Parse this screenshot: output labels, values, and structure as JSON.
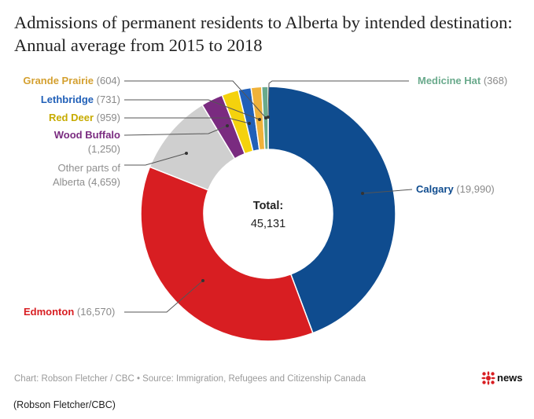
{
  "chart_data": {
    "type": "pie",
    "title": "Admissions of permanent residents to Alberta by intended destination: Annual average from 2015 to 2018",
    "total_label": "Total:",
    "total_value": "45,131",
    "slices": [
      {
        "name": "Calgary",
        "value": 19990,
        "value_label": "(19,990)",
        "color": "#0f4c8f"
      },
      {
        "name": "Edmonton",
        "value": 16570,
        "value_label": "(16,570)",
        "color": "#d81e22"
      },
      {
        "name": "Other parts of Alberta",
        "value": 4659,
        "value_label": "(4,659)",
        "color": "#cfcfcf"
      },
      {
        "name": "Wood Buffalo",
        "value": 1250,
        "value_label": "(1,250)",
        "color": "#7a2b80"
      },
      {
        "name": "Red Deer",
        "value": 959,
        "value_label": "(959)",
        "color": "#f4d20d"
      },
      {
        "name": "Lethbridge",
        "value": 731,
        "value_label": "(731)",
        "color": "#2160b8"
      },
      {
        "name": "Grande Prairie",
        "value": 604,
        "value_label": "(604)",
        "color": "#f0b23a"
      },
      {
        "name": "Medicine Hat",
        "value": 368,
        "value_label": "(368)",
        "color": "#6aaa8c"
      }
    ]
  },
  "labels": {
    "calgary": {
      "name": "Calgary",
      "value": "(19,990)",
      "color": "#0f4c8f"
    },
    "edmonton": {
      "name": "Edmonton",
      "value": "(16,570)",
      "color": "#d81e22"
    },
    "other": {
      "name1": "Other parts of",
      "name2": "Alberta",
      "value": "(4,659)",
      "color": "#8f8f8f"
    },
    "wood_buffalo": {
      "name": "Wood Buffalo",
      "value": "(1,250)",
      "color": "#7a2b80"
    },
    "red_deer": {
      "name": "Red Deer",
      "value": "(959)",
      "color": "#c7ab00"
    },
    "lethbridge": {
      "name": "Lethbridge",
      "value": "(731)",
      "color": "#2160b8"
    },
    "grande_prairie": {
      "name": "Grande Prairie",
      "value": "(604)",
      "color": "#d4a030"
    },
    "medicine_hat": {
      "name": "Medicine Hat",
      "value": "(368)",
      "color": "#6aaa8c"
    }
  },
  "source": "Chart: Robson Fletcher / CBC • Source: Immigration, Refugees and Citizenship Canada",
  "credit": "(Robson Fletcher/CBC)",
  "logo_text": "news"
}
